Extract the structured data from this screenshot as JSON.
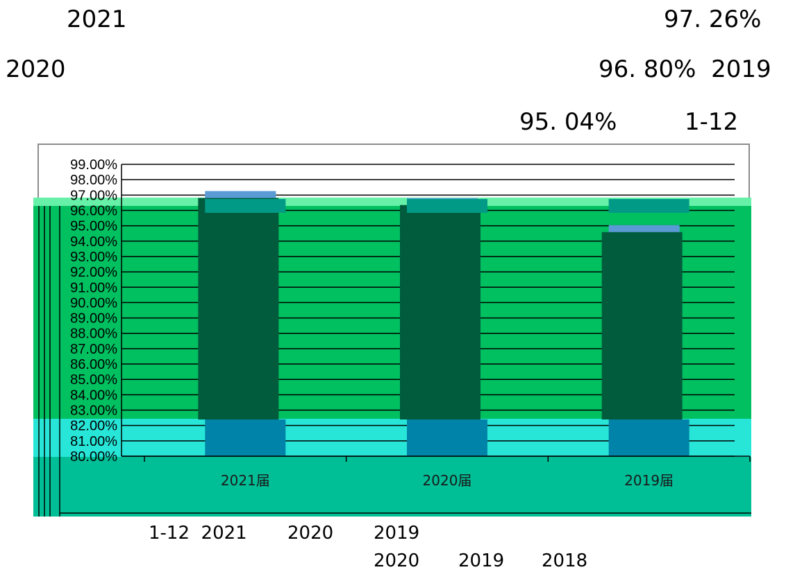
{
  "page_text": {
    "line1_left": "2021",
    "line1_right": "97. 26%",
    "line2_left": "2020",
    "line2_right": "96. 80%  2019",
    "line3_right_a": "95. 04%",
    "line3_right_b": "1-12",
    "footer1_a": "1-12  2021",
    "footer1_b": "2020",
    "footer1_c": "2019",
    "footer2_a": "2020",
    "footer2_b": "2019",
    "footer2_c": "2018"
  },
  "colors": {
    "bar_top": "#5b9bd5",
    "bar_dark": "#005c3c",
    "bar_blue": "#0083a8",
    "bar_teal": "#009a86",
    "gridline": "#000000",
    "frame": "#8c8c8c"
  },
  "chart_data": {
    "type": "bar",
    "categories": [
      "2021届",
      "2020届",
      "2019届"
    ],
    "values": [
      97.26,
      96.8,
      95.04
    ],
    "ylim": [
      80,
      99
    ],
    "y_ticks": [
      "80.00%",
      "81.00%",
      "82.00%",
      "83.00%",
      "84.00%",
      "85.00%",
      "86.00%",
      "87.00%",
      "88.00%",
      "89.00%",
      "90.00%",
      "91.00%",
      "92.00%",
      "93.00%",
      "94.00%",
      "95.00%",
      "96.00%",
      "97.00%",
      "98.00%",
      "99.00%"
    ],
    "grid": true,
    "title": "",
    "xlabel": "",
    "ylabel": ""
  }
}
